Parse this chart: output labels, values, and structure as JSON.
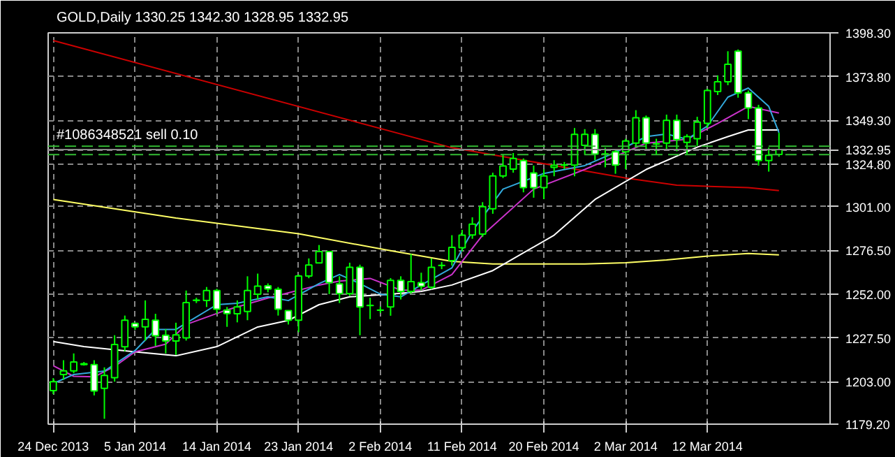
{
  "chart_data": {
    "type": "candlestick",
    "title": "GOLD,Daily 1330.25 1342.30 1328.95 1332.95",
    "categories": [
      "24 Dec 2013",
      null,
      null,
      null,
      null,
      null,
      null,
      null,
      "5 Jan 2014",
      null,
      null,
      null,
      null,
      null,
      null,
      null,
      "14 Jan 2014",
      null,
      null,
      null,
      null,
      null,
      null,
      null,
      "23 Jan 2014",
      null,
      null,
      null,
      null,
      null,
      null,
      null,
      "2 Feb 2014",
      null,
      null,
      null,
      null,
      null,
      null,
      null,
      "11 Feb 2014",
      null,
      null,
      null,
      null,
      null,
      null,
      null,
      "20 Feb 2014",
      null,
      null,
      null,
      null,
      null,
      null,
      null,
      "2 Mar 2014",
      null,
      null,
      null,
      null,
      null,
      null,
      null,
      "12 Mar 2014",
      null,
      null,
      null,
      null,
      null,
      null,
      null
    ],
    "ohlc": [
      [
        1198,
        1205,
        1196,
        1203
      ],
      [
        1207,
        1215,
        1204,
        1209
      ],
      [
        1209,
        1218.8,
        1207.7,
        1214
      ],
      [
        1212.6,
        1214,
        1212,
        1213
      ],
      [
        1212.6,
        1215,
        1195.3,
        1197.8
      ],
      [
        1199.3,
        1211,
        1182.2,
        1206.5
      ],
      [
        1205.2,
        1229,
        1203,
        1223.8
      ],
      [
        1222.5,
        1240,
        1220,
        1237.4
      ],
      [
        1235.6,
        1236,
        1232,
        1233.7
      ],
      [
        1233.7,
        1248.5,
        1226,
        1237.9
      ],
      [
        1237.4,
        1241,
        1223,
        1228.7
      ],
      [
        1229,
        1232.4,
        1218.8,
        1225.8
      ],
      [
        1225.8,
        1236,
        1218,
        1229.2
      ],
      [
        1227.5,
        1254,
        1226,
        1247.3
      ],
      [
        1248.5,
        1250,
        1247,
        1248.6
      ],
      [
        1248.5,
        1256,
        1244.8,
        1254
      ],
      [
        1254,
        1255,
        1241,
        1243.6
      ],
      [
        1243.1,
        1244.8,
        1233.7,
        1241.1
      ],
      [
        1241,
        1248.5,
        1236.2,
        1244.8
      ],
      [
        1242.3,
        1262,
        1237.4,
        1254
      ],
      [
        1252,
        1263.5,
        1249,
        1256.5
      ],
      [
        1256.7,
        1258,
        1253,
        1254.9
      ],
      [
        1254.7,
        1256,
        1240,
        1243.6
      ],
      [
        1242.8,
        1243,
        1235,
        1237.4
      ],
      [
        1237.4,
        1263,
        1230.7,
        1262.1
      ],
      [
        1262.1,
        1272,
        1260.9,
        1268.3
      ],
      [
        1269.5,
        1279.5,
        1269.5,
        1275.8
      ],
      [
        1275.8,
        1276,
        1252,
        1258.4
      ],
      [
        1257.7,
        1262,
        1247,
        1252.3
      ],
      [
        1252.3,
        1269.6,
        1251,
        1267
      ],
      [
        1267,
        1268.5,
        1229,
        1244.8
      ],
      [
        1245.6,
        1250,
        1238,
        1245.7
      ],
      [
        1243,
        1245,
        1241.5,
        1243.1
      ],
      [
        1244.8,
        1261,
        1239.9,
        1259.7
      ],
      [
        1259.7,
        1262,
        1249,
        1253.5
      ],
      [
        1253.5,
        1274.5,
        1252.3,
        1259
      ],
      [
        1258.4,
        1264,
        1254,
        1256.4
      ],
      [
        1255.9,
        1272,
        1254.7,
        1267
      ],
      [
        1268,
        1270,
        1266,
        1268.1
      ],
      [
        1270.8,
        1285,
        1268,
        1278.2
      ],
      [
        1278,
        1288,
        1276,
        1285
      ],
      [
        1285.1,
        1295,
        1283,
        1291.2
      ],
      [
        1285.6,
        1303.5,
        1284,
        1301
      ],
      [
        1299.8,
        1320,
        1297,
        1318.2
      ],
      [
        1318.2,
        1330.4,
        1317,
        1323.8
      ],
      [
        1322,
        1331,
        1320,
        1328
      ],
      [
        1326.8,
        1328,
        1309,
        1311.6
      ],
      [
        1319.9,
        1324,
        1306,
        1311.6
      ],
      [
        1311.6,
        1321.9,
        1305.2,
        1318.2
      ],
      [
        1323,
        1327,
        1318,
        1324.2
      ],
      [
        1324.3,
        1326,
        1322,
        1324.4
      ],
      [
        1324.3,
        1345,
        1318,
        1341.5
      ],
      [
        1335.3,
        1344.4,
        1330,
        1341.5
      ],
      [
        1341.5,
        1344.4,
        1327,
        1330.4
      ],
      [
        1330.4,
        1334,
        1323,
        1330.5
      ],
      [
        1331.7,
        1332.9,
        1319.4,
        1324.3
      ],
      [
        1331.7,
        1339,
        1322,
        1337.8
      ],
      [
        1336.6,
        1355,
        1334,
        1350.8
      ],
      [
        1350.8,
        1352,
        1333,
        1336.6
      ],
      [
        1336.1,
        1339,
        1330,
        1336.2
      ],
      [
        1336.6,
        1352.5,
        1333,
        1349.3
      ],
      [
        1349.3,
        1352.5,
        1332,
        1338.5
      ],
      [
        1337,
        1341.5,
        1330.4,
        1340.2
      ],
      [
        1339,
        1351.3,
        1335,
        1348.3
      ],
      [
        1347.6,
        1367,
        1345,
        1366
      ],
      [
        1365.4,
        1374.5,
        1363.5,
        1370.9
      ],
      [
        1370.9,
        1388,
        1369,
        1380.7
      ],
      [
        1388,
        1389,
        1362,
        1364.7
      ],
      [
        1364.7,
        1366,
        1350,
        1356.2
      ],
      [
        1356.2,
        1358,
        1324,
        1326.8
      ],
      [
        1326.8,
        1334.1,
        1320.6,
        1329.7
      ],
      [
        1330.25,
        1342.3,
        1328.95,
        1332.95
      ]
    ],
    "color": "#00ff00",
    "colors": [
      "#000000",
      "#000000",
      "#000000",
      "#000000",
      "#ffffff",
      "#000000",
      "#000000",
      "#000000",
      "#ffffff",
      "#000000",
      "#ffffff",
      "#ffffff",
      "#000000",
      "#000000",
      "#000000",
      "#000000",
      "#ffffff",
      "#ffffff",
      "#000000",
      "#000000",
      "#000000",
      "#ffffff",
      "#ffffff",
      "#ffffff",
      "#000000",
      "#000000",
      "#000000",
      "#ffffff",
      "#ffffff",
      "#000000",
      "#ffffff",
      "#000000",
      "#000000",
      "#000000",
      "#ffffff",
      "#000000",
      "#ffffff",
      "#000000",
      "#000000",
      "#000000",
      "#000000",
      "#000000",
      "#000000",
      "#000000",
      "#000000",
      "#000000",
      "#ffffff",
      "#ffffff",
      "#000000",
      "#000000",
      "#000000",
      "#000000",
      "#000000",
      "#ffffff",
      "#000000",
      "#ffffff",
      "#000000",
      "#000000",
      "#ffffff",
      "#000000",
      "#000000",
      "#ffffff",
      "#000000",
      "#000000",
      "#000000",
      "#000000",
      "#000000",
      "#ffffff",
      "#ffffff",
      "#ffffff",
      "#000000",
      "#000000"
    ],
    "series": [
      {
        "type": "line",
        "color": "#cc0000",
        "values": [
          1394,
          null,
          null,
          null,
          null,
          null,
          null,
          null,
          null,
          null,
          null,
          null,
          null,
          null,
          null,
          null,
          null,
          null,
          null,
          null,
          null,
          null,
          null,
          null,
          null,
          null,
          null,
          null,
          null,
          null,
          null,
          null,
          null,
          null,
          null,
          null,
          null,
          null,
          null,
          1334,
          null,
          null,
          null,
          null,
          null,
          null,
          null,
          null,
          1325,
          null,
          null,
          null,
          null,
          null,
          null,
          null,
          1317,
          null,
          null,
          null,
          null,
          1313,
          null,
          null,
          null,
          null,
          null,
          null,
          1311.6,
          null,
          null,
          1310
        ]
      },
      {
        "type": "line",
        "color": "#ffff66",
        "values": [
          1305,
          null,
          null,
          null,
          null,
          null,
          null,
          null,
          null,
          null,
          null,
          null,
          1294.6,
          null,
          null,
          null,
          null,
          null,
          null,
          null,
          null,
          null,
          null,
          null,
          1285.8,
          null,
          null,
          null,
          null,
          null,
          null,
          null,
          null,
          1276.3,
          null,
          null,
          null,
          null,
          null,
          1270.4,
          null,
          null,
          null,
          1268.9,
          null,
          null,
          null,
          null,
          null,
          null,
          null,
          null,
          1268.9,
          null,
          null,
          null,
          1269.6,
          null,
          null,
          null,
          1271.1,
          null,
          null,
          null,
          1273.3,
          null,
          null,
          null,
          1274.8,
          null,
          null,
          1274
        ]
      },
      {
        "type": "line",
        "color": "#ffffff",
        "values": [
          1225.5,
          null,
          null,
          1222.6,
          null,
          null,
          null,
          null,
          1219.7,
          null,
          null,
          null,
          1217.5,
          null,
          null,
          null,
          1222.6,
          null,
          null,
          null,
          1233.6,
          null,
          null,
          1237.3,
          null,
          null,
          1246.1,
          null,
          null,
          1250.5,
          null,
          null,
          null,
          1252,
          null,
          null,
          1253.5,
          null,
          null,
          1257.1,
          null,
          null,
          null,
          1265.2,
          null,
          null,
          null,
          null,
          null,
          1285,
          null,
          null,
          null,
          1305,
          null,
          null,
          null,
          null,
          1321.8,
          null,
          null,
          null,
          null,
          1334.3,
          null,
          null,
          1340.2,
          null,
          1343.9,
          null,
          null,
          1343.9
        ]
      },
      {
        "type": "line",
        "color": "#cc33cc",
        "values": [
          1211.9,
          null,
          1206,
          null,
          1205.7,
          null,
          1211.5,
          null,
          1219.7,
          null,
          null,
          1224,
          null,
          1235,
          null,
          null,
          null,
          1243.2,
          null,
          null,
          null,
          1249.8,
          null,
          null,
          null,
          null,
          1257.1,
          null,
          1259.3,
          null,
          null,
          1260.8,
          null,
          null,
          1254.2,
          null,
          1254.2,
          null,
          null,
          1263,
          null,
          null,
          1285,
          null,
          null,
          null,
          null,
          1310.8,
          null,
          null,
          null,
          null,
          1321.8,
          null,
          null,
          null,
          null,
          null,
          1336.5,
          null,
          null,
          null,
          1338.7,
          null,
          null,
          1347.6,
          null,
          null,
          1357.1,
          null,
          null,
          1353.4
        ]
      },
      {
        "type": "line",
        "color": "#33aadd",
        "values": [
          1202,
          null,
          1207,
          null,
          null,
          1208.9,
          null,
          null,
          1220.4,
          null,
          1232.2,
          null,
          1232.2,
          1235.8,
          null,
          null,
          1246.1,
          null,
          1246.9,
          null,
          null,
          1250.5,
          null,
          1248.4,
          null,
          null,
          1257.9,
          null,
          1263,
          null,
          1257.9,
          null,
          1252,
          null,
          1250.5,
          null,
          1257.1,
          null,
          null,
          1266.7,
          null,
          1287.3,
          null,
          null,
          1310.8,
          null,
          null,
          null,
          1319.6,
          null,
          null,
          null,
          1324,
          null,
          null,
          1331.4,
          null,
          null,
          1340.2,
          null,
          1341.7,
          null,
          1338.7,
          null,
          1346.1,
          null,
          1362.3,
          null,
          1367.4,
          null,
          1357.1,
          1342.4
        ]
      }
    ],
    "ref_lines": [
      {
        "axis": "y",
        "value": 1334.8,
        "label": "#1086348521 sell 0.10",
        "color": "#33bb33",
        "line_style": "dashed"
      },
      {
        "axis": "y",
        "value": 1330.1,
        "label": null,
        "color": "#33bb33",
        "line_style": "dashed"
      },
      {
        "axis": "y",
        "value": 1332.95,
        "label": null,
        "color": "#888888",
        "line_style": "solid"
      }
    ],
    "ylim": [
      1179.2,
      1398.3
    ],
    "yticks": [
      {
        "value": 1179.2,
        "label": "1179.20"
      },
      {
        "value": 1203,
        "label": "1203.00"
      },
      {
        "value": 1227.5,
        "label": "1227.50"
      },
      {
        "value": 1252,
        "label": "1252.00"
      },
      {
        "value": 1276.5,
        "label": "1276.50"
      },
      {
        "value": 1301,
        "label": "1301.00"
      },
      {
        "value": 1324.8,
        "label": "1324.80"
      },
      {
        "value": 1332.95,
        "label": "1332.95"
      },
      {
        "value": 1349.3,
        "label": "1349.30"
      },
      {
        "value": 1373.8,
        "label": "1373.80"
      },
      {
        "value": 1398.3,
        "label": "1398.30"
      }
    ],
    "grid": true
  }
}
